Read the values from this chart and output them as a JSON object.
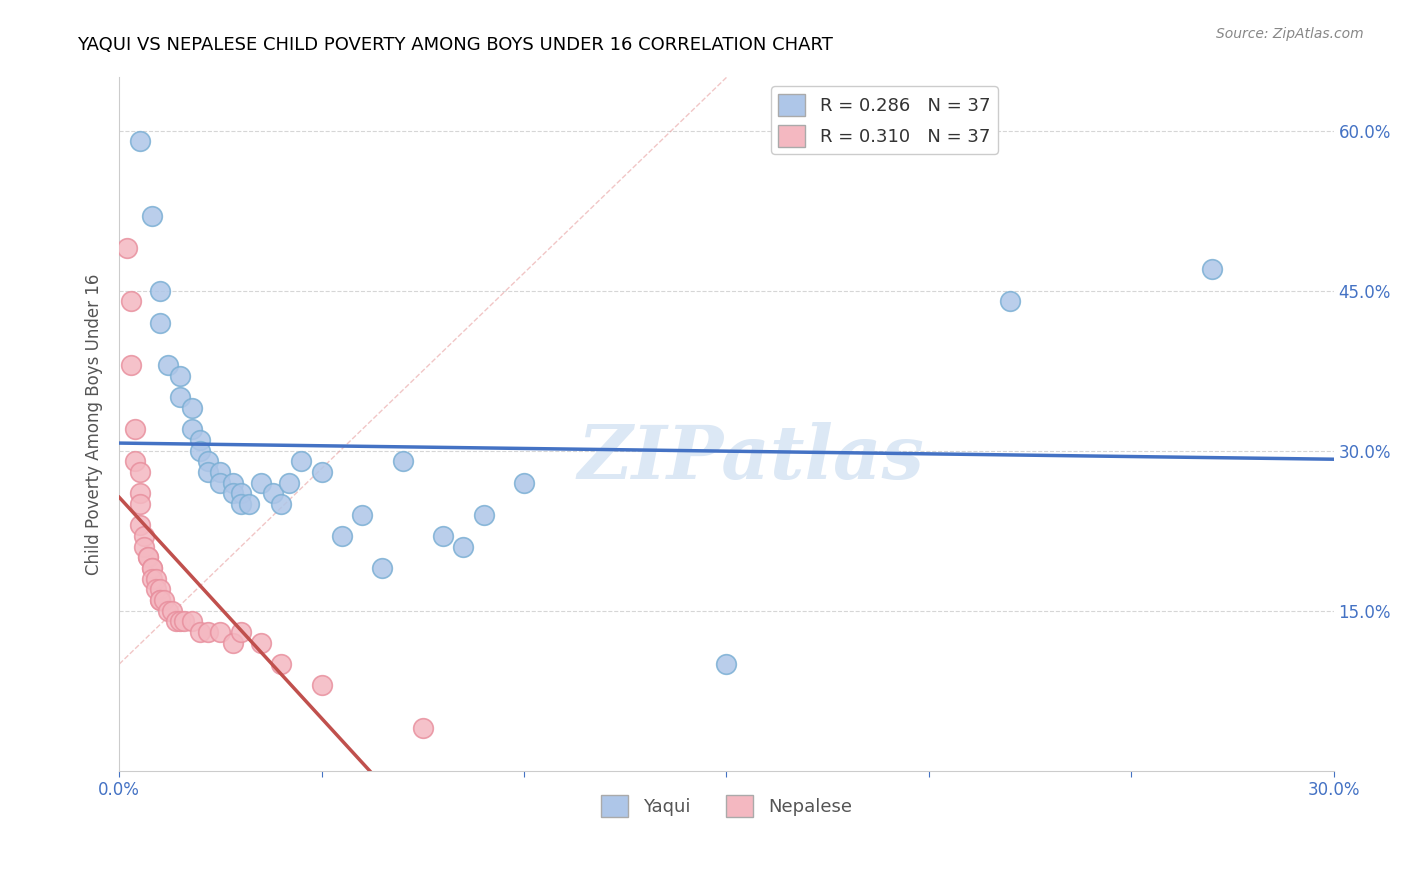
{
  "title": "YAQUI VS NEPALESE CHILD POVERTY AMONG BOYS UNDER 16 CORRELATION CHART",
  "source": "Source: ZipAtlas.com",
  "ylabel": "Child Poverty Among Boys Under 16",
  "x_tick_labels": [
    "0.0%",
    "",
    "",
    "",
    "",
    "",
    "30.0%"
  ],
  "y_tick_labels": [
    "15.0%",
    "30.0%",
    "45.0%",
    "60.0%"
  ],
  "xlim": [
    0.0,
    0.3
  ],
  "ylim": [
    0.0,
    0.65
  ],
  "yaqui_x": [
    0.005,
    0.008,
    0.01,
    0.01,
    0.012,
    0.015,
    0.015,
    0.018,
    0.018,
    0.02,
    0.02,
    0.022,
    0.022,
    0.025,
    0.025,
    0.028,
    0.028,
    0.03,
    0.03,
    0.032,
    0.035,
    0.038,
    0.04,
    0.042,
    0.045,
    0.05,
    0.055,
    0.06,
    0.065,
    0.07,
    0.08,
    0.085,
    0.09,
    0.1,
    0.15,
    0.22,
    0.27
  ],
  "yaqui_y": [
    0.59,
    0.52,
    0.45,
    0.42,
    0.38,
    0.37,
    0.35,
    0.34,
    0.32,
    0.31,
    0.3,
    0.29,
    0.28,
    0.28,
    0.27,
    0.27,
    0.26,
    0.26,
    0.25,
    0.25,
    0.27,
    0.26,
    0.25,
    0.27,
    0.29,
    0.28,
    0.22,
    0.24,
    0.19,
    0.29,
    0.22,
    0.21,
    0.24,
    0.27,
    0.1,
    0.44,
    0.47
  ],
  "nepalese_x": [
    0.002,
    0.003,
    0.003,
    0.004,
    0.004,
    0.005,
    0.005,
    0.005,
    0.005,
    0.006,
    0.006,
    0.007,
    0.007,
    0.008,
    0.008,
    0.008,
    0.009,
    0.009,
    0.01,
    0.01,
    0.01,
    0.011,
    0.012,
    0.013,
    0.014,
    0.015,
    0.016,
    0.018,
    0.02,
    0.022,
    0.025,
    0.028,
    0.03,
    0.035,
    0.04,
    0.05,
    0.075
  ],
  "nepalese_y": [
    0.49,
    0.44,
    0.38,
    0.32,
    0.29,
    0.28,
    0.26,
    0.25,
    0.23,
    0.22,
    0.21,
    0.2,
    0.2,
    0.19,
    0.19,
    0.18,
    0.18,
    0.17,
    0.17,
    0.16,
    0.16,
    0.16,
    0.15,
    0.15,
    0.14,
    0.14,
    0.14,
    0.14,
    0.13,
    0.13,
    0.13,
    0.12,
    0.13,
    0.12,
    0.1,
    0.08,
    0.04
  ],
  "yaqui_color": "#aec6e8",
  "yaqui_edge_color": "#7bafd4",
  "nepalese_color": "#f4b8c1",
  "nepalese_edge_color": "#e8909e",
  "yaqui_line_color": "#4472c4",
  "nepalese_line_color": "#c0504d",
  "diag_line_color": "#e8a0a0",
  "background_color": "#ffffff",
  "grid_color": "#cccccc",
  "title_color": "#000000",
  "axis_color": "#4472c4",
  "watermark": "ZIPatlas",
  "watermark_color": "#dce8f5"
}
